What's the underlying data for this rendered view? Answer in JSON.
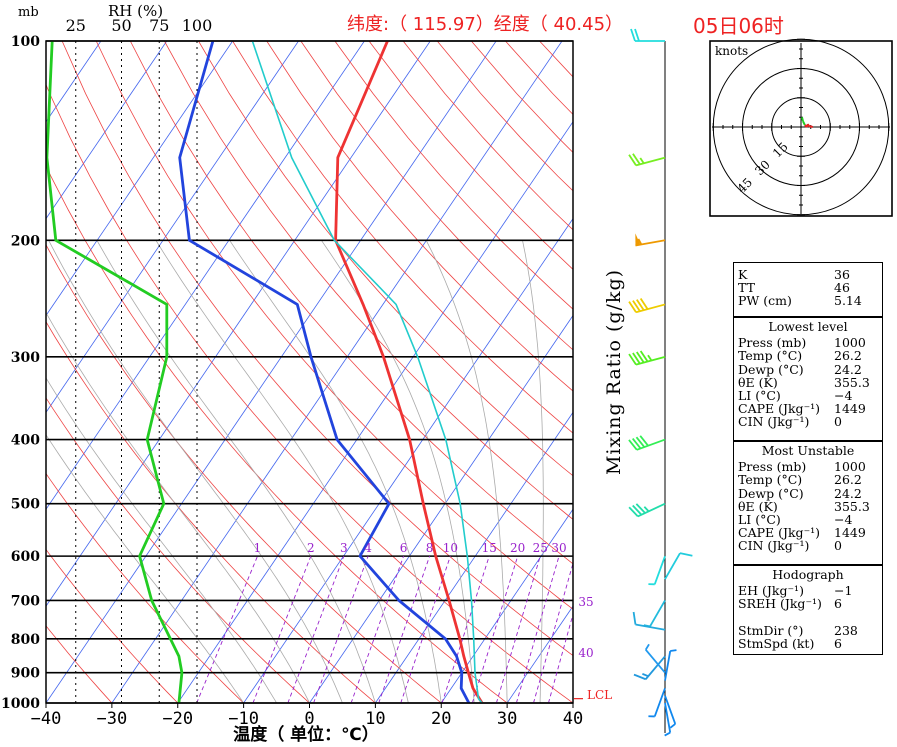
{
  "header": {
    "latlon_label": "纬度:（ 115.97）经度（ 40.45）",
    "time_label": "05日06时"
  },
  "chart_data": {
    "type": "skew-t log-p",
    "pressure_unit_label": "mb",
    "pressure_ticks": [
      100,
      200,
      300,
      400,
      500,
      600,
      700,
      800,
      900,
      1000
    ],
    "temperature_ticks": [
      -40,
      -30,
      -20,
      -10,
      0,
      10,
      20,
      30,
      40
    ],
    "xlabel": "温度（ 单位：℃）",
    "xlim": [
      -40,
      40
    ],
    "ylim": [
      1000,
      100
    ],
    "rh_axis": {
      "label": "RH (%)",
      "ticks": [
        25,
        50,
        75,
        100
      ]
    },
    "mixing_ratio": {
      "label": "Mixing Ratio (g/kg)",
      "ticks": [
        "1",
        "2",
        "3",
        "4",
        "6",
        "8",
        "10",
        "15",
        "20",
        "25",
        "30",
        "35",
        "40"
      ]
    },
    "lcl_label": "LCL",
    "lcl_pressure": 985,
    "series": [
      {
        "key": "temperature",
        "color": "#ee3333",
        "points": [
          [
            1000,
            26.2
          ],
          [
            950,
            23.3
          ],
          [
            900,
            21.0
          ],
          [
            850,
            18.6
          ],
          [
            800,
            16.2
          ],
          [
            700,
            10.6
          ],
          [
            600,
            4.0
          ],
          [
            500,
            -3.3
          ],
          [
            400,
            -12.0
          ],
          [
            300,
            -24.5
          ],
          [
            250,
            -33.0
          ],
          [
            200,
            -43.8
          ],
          [
            150,
            -52.0
          ],
          [
            100,
            -56.5
          ]
        ]
      },
      {
        "key": "dewpoint",
        "color": "#2244dd",
        "points": [
          [
            1000,
            24.2
          ],
          [
            950,
            21.5
          ],
          [
            900,
            20.0
          ],
          [
            850,
            17.5
          ],
          [
            800,
            14.0
          ],
          [
            700,
            3.0
          ],
          [
            600,
            -7.5
          ],
          [
            500,
            -8.5
          ],
          [
            400,
            -23.0
          ],
          [
            300,
            -35.5
          ],
          [
            250,
            -43.0
          ],
          [
            200,
            -66.0
          ],
          [
            150,
            -76.0
          ],
          [
            100,
            -83.0
          ]
        ]
      },
      {
        "key": "rh",
        "color": "#22cc22",
        "points": [
          [
            1000,
            88
          ],
          [
            900,
            90
          ],
          [
            850,
            88
          ],
          [
            700,
            70
          ],
          [
            600,
            62
          ],
          [
            500,
            78
          ],
          [
            400,
            67
          ],
          [
            300,
            80
          ],
          [
            250,
            80
          ],
          [
            200,
            10
          ],
          [
            150,
            5
          ],
          [
            100,
            8
          ]
        ]
      },
      {
        "key": "parcel",
        "color": "#22cccc",
        "points": [
          [
            1000,
            26.2
          ],
          [
            985,
            25.2
          ],
          [
            900,
            22.0
          ],
          [
            800,
            18.3
          ],
          [
            700,
            14.0
          ],
          [
            600,
            8.8
          ],
          [
            500,
            2.3
          ],
          [
            400,
            -6.5
          ],
          [
            300,
            -19.3
          ],
          [
            250,
            -28.0
          ],
          [
            200,
            -44.0
          ],
          [
            150,
            -59.0
          ],
          [
            100,
            -77.0
          ]
        ]
      }
    ],
    "wind_barbs": [
      {
        "p": 100,
        "dir": 270,
        "spd": 20,
        "color": "#22dddd"
      },
      {
        "p": 150,
        "dir": 255,
        "spd": 25,
        "color": "#77ee22"
      },
      {
        "p": 200,
        "dir": 260,
        "spd": 55,
        "color": "#ee9900"
      },
      {
        "p": 250,
        "dir": 255,
        "spd": 40,
        "color": "#eecc00"
      },
      {
        "p": 300,
        "dir": 255,
        "spd": 45,
        "color": "#55ee22"
      },
      {
        "p": 400,
        "dir": 250,
        "spd": 40,
        "color": "#33ee55"
      },
      {
        "p": 500,
        "dir": 245,
        "spd": 35,
        "color": "#22ddaa"
      },
      {
        "p": 600,
        "dir": 200,
        "spd": 5,
        "color": "#22dddd"
      },
      {
        "p": 650,
        "dir": 30,
        "spd": 10,
        "color": "#22ccdd"
      },
      {
        "p": 700,
        "dir": 210,
        "spd": 5,
        "color": "#22bbdd"
      },
      {
        "p": 775,
        "dir": 280,
        "spd": 10,
        "color": "#22aadd"
      },
      {
        "p": 850,
        "dir": 220,
        "spd": 15,
        "color": "#2299dd"
      },
      {
        "p": 900,
        "dir": 320,
        "spd": 5,
        "color": "#2299ee"
      },
      {
        "p": 925,
        "dir": 10,
        "spd": 5,
        "color": "#1188ee"
      },
      {
        "p": 950,
        "dir": 200,
        "spd": 5,
        "color": "#1188ee"
      },
      {
        "p": 975,
        "dir": 160,
        "spd": 5,
        "color": "#1188ee"
      },
      {
        "p": 1000,
        "dir": 170,
        "spd": 5,
        "color": "#1188ee"
      }
    ],
    "hodograph": {
      "units_label": "knots",
      "ring_labels": [
        "15",
        "30",
        "45"
      ],
      "ring_values": [
        15,
        30,
        45
      ],
      "points": [
        [
          0.5,
          5
        ],
        [
          1,
          3
        ],
        [
          2,
          1
        ],
        [
          3,
          0
        ],
        [
          3.5,
          1.5
        ],
        [
          4,
          0.5
        ],
        [
          6,
          0
        ]
      ],
      "colors": [
        "#22cc22",
        "#ee2222"
      ]
    }
  },
  "indices": {
    "top": [
      {
        "label": "K",
        "value": "36"
      },
      {
        "label": "TT",
        "value": "46"
      },
      {
        "label": "PW (cm)",
        "value": "5.14"
      }
    ],
    "lowest": {
      "title": "Lowest level",
      "rows": [
        {
          "label": "Press (mb)",
          "value": "1000"
        },
        {
          "label": "Temp (°C)",
          "value": "26.2"
        },
        {
          "label": "Dewp (°C)",
          "value": "24.2"
        },
        {
          "label": "θE (K)",
          "value": "355.3"
        },
        {
          "label": "LI (°C)",
          "value": "−4"
        },
        {
          "label": "CAPE (Jkg⁻¹)",
          "value": "1449"
        },
        {
          "label": "CIN (Jkg⁻¹)",
          "value": "0"
        }
      ]
    },
    "most_unstable": {
      "title": "Most Unstable",
      "rows": [
        {
          "label": "Press (mb)",
          "value": "1000"
        },
        {
          "label": "Temp (°C)",
          "value": "26.2"
        },
        {
          "label": "Dewp (°C)",
          "value": "24.2"
        },
        {
          "label": "θE (K)",
          "value": "355.3"
        },
        {
          "label": "LI (°C)",
          "value": "−4"
        },
        {
          "label": "CAPE (Jkg⁻¹)",
          "value": "1449"
        },
        {
          "label": "CIN (Jkg⁻¹)",
          "value": "0"
        }
      ]
    },
    "hodograph": {
      "title": "Hodograph",
      "rows": [
        {
          "label": "EH (Jkg⁻¹)",
          "value": "−1"
        },
        {
          "label": "SREH (Jkg⁻¹)",
          "value": "6"
        },
        {
          "label": "",
          "value": ""
        },
        {
          "label": "StmDir (°)",
          "value": "238"
        },
        {
          "label": "StmSpd (kt)",
          "value": "6"
        }
      ]
    }
  }
}
